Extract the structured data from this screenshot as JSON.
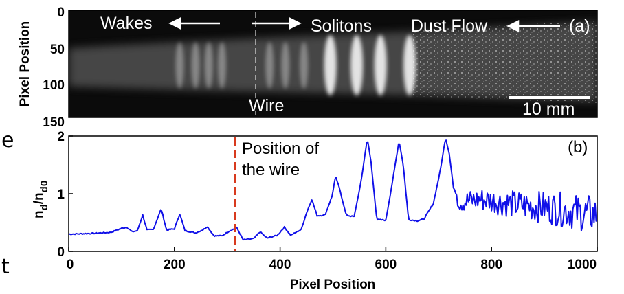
{
  "colors": {
    "line": "#1010e8",
    "wire_marker": "#d83a1e",
    "image_text": "#ffffff",
    "axes": "#000000"
  },
  "side_fragments": [
    "e",
    "t"
  ],
  "chart_data": [
    {
      "panel": "(a)",
      "type": "heatmap",
      "ylabel": "Pixel Position",
      "yticks": [
        "0",
        "50",
        "100",
        "150"
      ],
      "ylim": [
        0,
        150
      ],
      "xlim": [
        0,
        1000
      ],
      "annotations": {
        "wakes": "Wakes",
        "solitons": "Solitons",
        "dust_flow": "Dust Flow",
        "wire": "Wire",
        "scalebar": "10 mm"
      },
      "wire_x": 315,
      "bright_fronts_x": [
        210,
        240,
        265,
        290,
        380,
        410,
        445,
        495,
        545,
        590,
        645
      ]
    },
    {
      "panel": "(b)",
      "type": "line",
      "xlabel": "Pixel Position",
      "ylabel_main": "n",
      "ylabel_sub1": "d",
      "ylabel_mid": "/n",
      "ylabel_sub2": "d0",
      "xlim": [
        0,
        1000
      ],
      "ylim": [
        0,
        2
      ],
      "xticks": [
        "0",
        "200",
        "400",
        "600",
        "800",
        "1000"
      ],
      "yticks": [
        "0",
        "1",
        "2"
      ],
      "annotation_line1": "Position of",
      "annotation_line2": "the wire",
      "wire_x": 315,
      "series": [
        {
          "points": [
            [
              0,
              0.3
            ],
            [
              40,
              0.31
            ],
            [
              80,
              0.33
            ],
            [
              100,
              0.4
            ],
            [
              110,
              0.42
            ],
            [
              120,
              0.34
            ],
            [
              130,
              0.36
            ],
            [
              140,
              0.63
            ],
            [
              148,
              0.37
            ],
            [
              160,
              0.38
            ],
            [
              175,
              0.74
            ],
            [
              185,
              0.37
            ],
            [
              200,
              0.39
            ],
            [
              210,
              0.65
            ],
            [
              220,
              0.36
            ],
            [
              240,
              0.32
            ],
            [
              255,
              0.38
            ],
            [
              262,
              0.43
            ],
            [
              275,
              0.27
            ],
            [
              290,
              0.27
            ],
            [
              305,
              0.36
            ],
            [
              318,
              0.41
            ],
            [
              330,
              0.2
            ],
            [
              350,
              0.22
            ],
            [
              362,
              0.34
            ],
            [
              375,
              0.23
            ],
            [
              395,
              0.28
            ],
            [
              408,
              0.42
            ],
            [
              420,
              0.28
            ],
            [
              440,
              0.38
            ],
            [
              450,
              0.67
            ],
            [
              460,
              0.9
            ],
            [
              470,
              0.62
            ],
            [
              485,
              0.63
            ],
            [
              498,
              0.95
            ],
            [
              505,
              1.3
            ],
            [
              513,
              1.07
            ],
            [
              525,
              0.63
            ],
            [
              540,
              0.6
            ],
            [
              553,
              1.2
            ],
            [
              565,
              1.96
            ],
            [
              572,
              1.55
            ],
            [
              583,
              0.55
            ],
            [
              600,
              0.54
            ],
            [
              613,
              1.23
            ],
            [
              625,
              1.92
            ],
            [
              633,
              1.5
            ],
            [
              643,
              0.55
            ],
            [
              660,
              0.53
            ],
            [
              672,
              0.56
            ],
            [
              690,
              0.83
            ],
            [
              703,
              1.4
            ],
            [
              713,
              1.97
            ],
            [
              720,
              1.7
            ],
            [
              728,
              1.1
            ],
            [
              740,
              0.86
            ],
            [
              760,
              0.88
            ],
            [
              780,
              0.9
            ],
            [
              800,
              0.88
            ],
            [
              820,
              0.85
            ],
            [
              840,
              0.82
            ],
            [
              860,
              0.8
            ],
            [
              880,
              0.78
            ],
            [
              900,
              0.77
            ],
            [
              920,
              0.74
            ],
            [
              940,
              0.72
            ],
            [
              960,
              0.68
            ],
            [
              980,
              0.66
            ],
            [
              1000,
              0.63
            ]
          ],
          "noise_after_x": 735,
          "noise_amplitude": 0.18
        }
      ]
    }
  ]
}
